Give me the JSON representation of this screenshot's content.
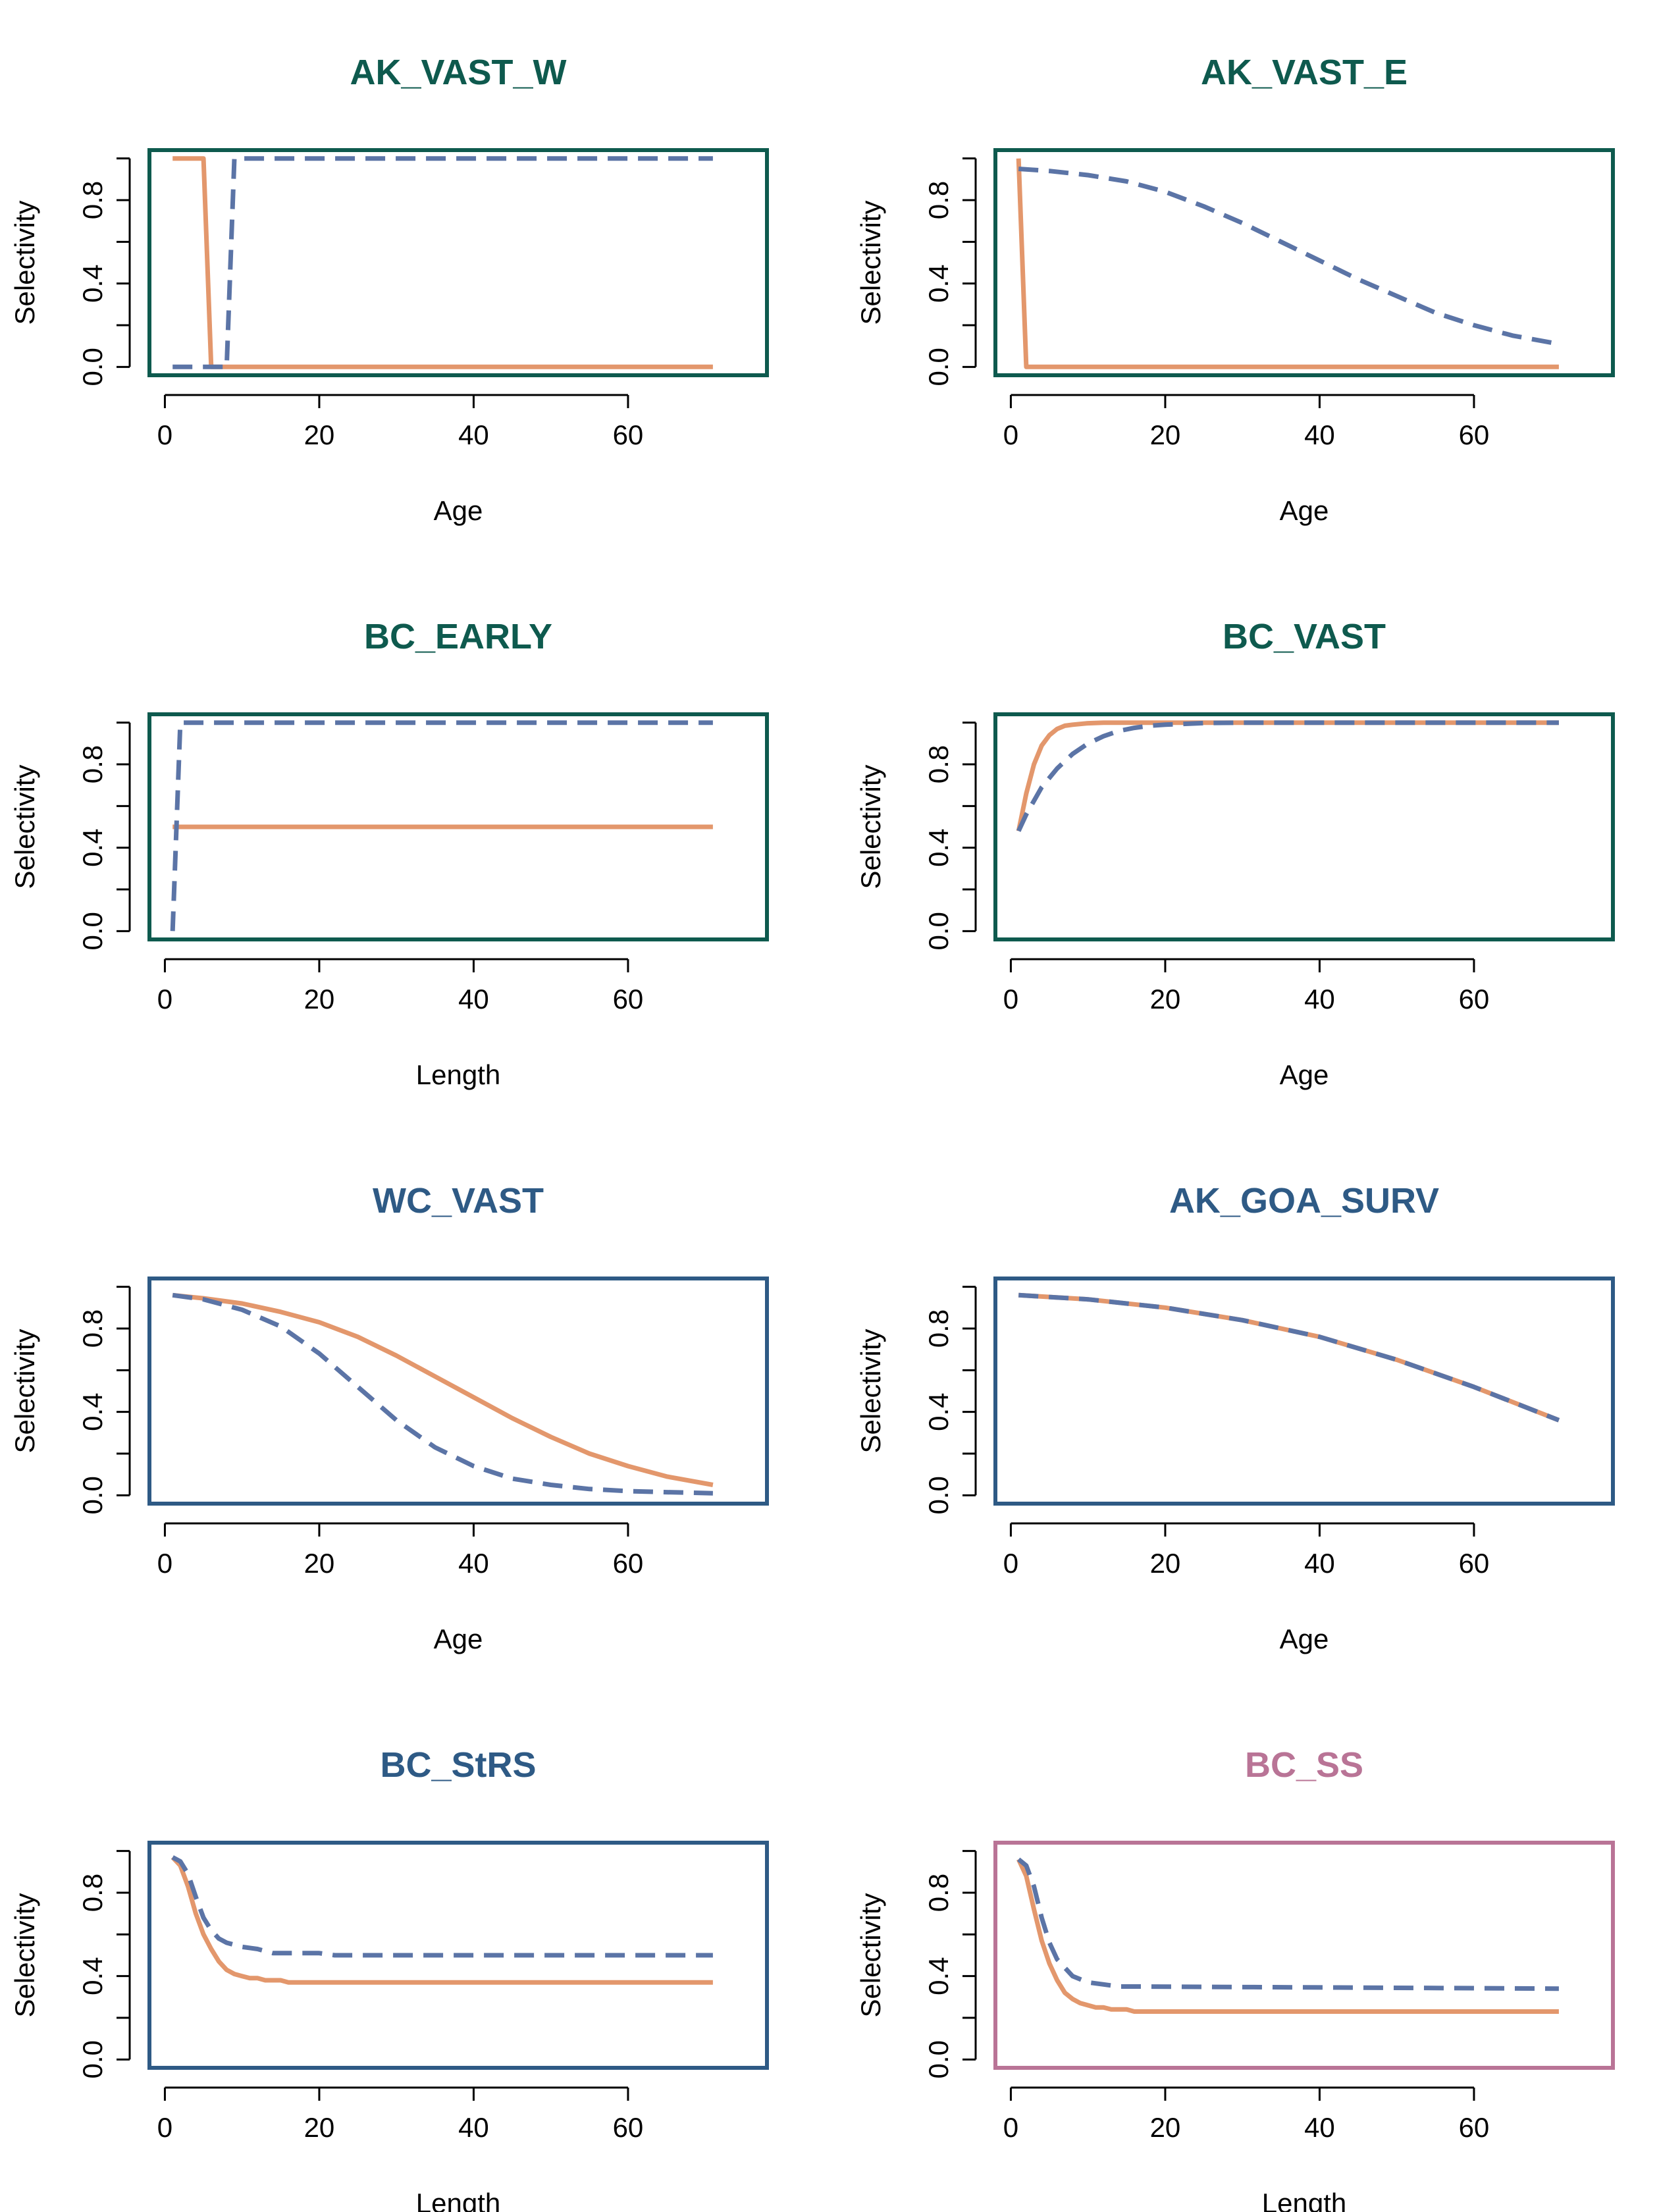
{
  "colors": {
    "orange": "#E3976C",
    "blue_dashed": "#5B74A6",
    "frame_green": "#0E5A4E",
    "frame_blue": "#2E5A85",
    "frame_pink": "#B97496"
  },
  "chart_data": [
    {
      "type": "line",
      "title": "AK_VAST_W",
      "xlabel": "Age",
      "ylabel": "Selectivity",
      "frame_color": "frame_green",
      "xlim": [
        -2,
        78
      ],
      "ylim": [
        -0.04,
        1.04
      ],
      "xticks": [
        "0",
        "20",
        "40",
        "60"
      ],
      "yticks": [
        "0.0",
        "0.4",
        "0.8"
      ],
      "series": [
        {
          "style": "solid",
          "color": "orange",
          "x": [
            1,
            5,
            6,
            71
          ],
          "y": [
            1.0,
            1.0,
            0.0,
            0.0
          ]
        },
        {
          "style": "dashed",
          "color": "blue_dashed",
          "x": [
            1,
            8,
            9,
            71
          ],
          "y": [
            0.0,
            0.0,
            1.0,
            1.0
          ]
        }
      ]
    },
    {
      "type": "line",
      "title": "AK_VAST_E",
      "xlabel": "Age",
      "ylabel": "Selectivity",
      "frame_color": "frame_green",
      "xlim": [
        -2,
        78
      ],
      "ylim": [
        -0.04,
        1.04
      ],
      "xticks": [
        "0",
        "20",
        "40",
        "60"
      ],
      "yticks": [
        "0.0",
        "0.4",
        "0.8"
      ],
      "series": [
        {
          "style": "solid",
          "color": "orange",
          "x": [
            1,
            2,
            71
          ],
          "y": [
            1.0,
            0.0,
            0.0
          ]
        },
        {
          "style": "dashed",
          "color": "blue_dashed",
          "x": [
            1,
            5,
            10,
            15,
            20,
            25,
            30,
            35,
            40,
            45,
            50,
            55,
            60,
            65,
            71
          ],
          "y": [
            0.95,
            0.94,
            0.92,
            0.89,
            0.84,
            0.77,
            0.69,
            0.6,
            0.51,
            0.42,
            0.34,
            0.26,
            0.2,
            0.15,
            0.11
          ]
        }
      ]
    },
    {
      "type": "line",
      "title": "BC_EARLY",
      "xlabel": "Length",
      "ylabel": "Selectivity",
      "frame_color": "frame_green",
      "xlim": [
        -2,
        78
      ],
      "ylim": [
        -0.04,
        1.04
      ],
      "xticks": [
        "0",
        "20",
        "40",
        "60"
      ],
      "yticks": [
        "0.0",
        "0.4",
        "0.8"
      ],
      "series": [
        {
          "style": "solid",
          "color": "orange",
          "x": [
            1,
            2,
            71
          ],
          "y": [
            0.5,
            0.5,
            0.5
          ]
        },
        {
          "style": "dashed",
          "color": "blue_dashed",
          "x": [
            1,
            2,
            71
          ],
          "y": [
            0.0,
            1.0,
            1.0
          ]
        }
      ]
    },
    {
      "type": "line",
      "title": "BC_VAST",
      "xlabel": "Age",
      "ylabel": "Selectivity",
      "frame_color": "frame_green",
      "xlim": [
        -2,
        78
      ],
      "ylim": [
        -0.04,
        1.04
      ],
      "xticks": [
        "0",
        "20",
        "40",
        "60"
      ],
      "yticks": [
        "0.0",
        "0.4",
        "0.8"
      ],
      "series": [
        {
          "style": "solid",
          "color": "orange",
          "x": [
            1,
            2,
            3,
            4,
            5,
            6,
            7,
            8,
            10,
            12,
            15,
            20,
            71
          ],
          "y": [
            0.48,
            0.66,
            0.8,
            0.89,
            0.94,
            0.97,
            0.985,
            0.99,
            0.997,
            1.0,
            1.0,
            1.0,
            1.0
          ]
        },
        {
          "style": "dashed",
          "color": "blue_dashed",
          "x": [
            1,
            2,
            4,
            6,
            8,
            10,
            12,
            14,
            16,
            18,
            20,
            25,
            30,
            71
          ],
          "y": [
            0.48,
            0.56,
            0.69,
            0.78,
            0.85,
            0.9,
            0.935,
            0.96,
            0.975,
            0.985,
            0.99,
            0.998,
            1.0,
            1.0
          ]
        }
      ]
    },
    {
      "type": "line",
      "title": "WC_VAST",
      "xlabel": "Age",
      "ylabel": "Selectivity",
      "frame_color": "frame_blue",
      "xlim": [
        -2,
        78
      ],
      "ylim": [
        -0.04,
        1.04
      ],
      "xticks": [
        "0",
        "20",
        "40",
        "60"
      ],
      "yticks": [
        "0.0",
        "0.4",
        "0.8"
      ],
      "series": [
        {
          "style": "solid",
          "color": "orange",
          "x": [
            1,
            5,
            10,
            15,
            20,
            25,
            30,
            35,
            40,
            45,
            50,
            55,
            60,
            65,
            71
          ],
          "y": [
            0.96,
            0.945,
            0.92,
            0.88,
            0.83,
            0.76,
            0.67,
            0.57,
            0.47,
            0.37,
            0.28,
            0.2,
            0.14,
            0.09,
            0.05
          ]
        },
        {
          "style": "dashed",
          "color": "blue_dashed",
          "x": [
            1,
            5,
            10,
            15,
            20,
            25,
            30,
            35,
            40,
            45,
            50,
            55,
            60,
            65,
            71
          ],
          "y": [
            0.96,
            0.94,
            0.89,
            0.81,
            0.68,
            0.52,
            0.36,
            0.23,
            0.14,
            0.08,
            0.05,
            0.03,
            0.02,
            0.015,
            0.01
          ]
        }
      ]
    },
    {
      "type": "line",
      "title": "AK_GOA_SURV",
      "xlabel": "Age",
      "ylabel": "Selectivity",
      "frame_color": "frame_blue",
      "xlim": [
        -2,
        78
      ],
      "ylim": [
        -0.04,
        1.04
      ],
      "xticks": [
        "0",
        "20",
        "40",
        "60"
      ],
      "yticks": [
        "0.0",
        "0.4",
        "0.8"
      ],
      "series": [
        {
          "style": "solid",
          "color": "orange",
          "x": [
            1,
            10,
            20,
            30,
            40,
            50,
            60,
            71
          ],
          "y": [
            0.96,
            0.94,
            0.9,
            0.84,
            0.76,
            0.65,
            0.52,
            0.36
          ]
        },
        {
          "style": "dashed",
          "color": "blue_dashed",
          "x": [
            1,
            10,
            20,
            30,
            40,
            50,
            60,
            71
          ],
          "y": [
            0.96,
            0.94,
            0.9,
            0.84,
            0.76,
            0.65,
            0.52,
            0.36
          ]
        }
      ]
    },
    {
      "type": "line",
      "title": "BC_StRS",
      "xlabel": "Length",
      "ylabel": "Selectivity",
      "frame_color": "frame_blue",
      "xlim": [
        -2,
        78
      ],
      "ylim": [
        -0.04,
        1.04
      ],
      "xticks": [
        "0",
        "20",
        "40",
        "60"
      ],
      "yticks": [
        "0.0",
        "0.4",
        "0.8"
      ],
      "series": [
        {
          "style": "solid",
          "color": "orange",
          "x": [
            1,
            2,
            3,
            4,
            5,
            6,
            7,
            8,
            9,
            10,
            11,
            12,
            13,
            14,
            15,
            16,
            71
          ],
          "y": [
            0.97,
            0.93,
            0.83,
            0.7,
            0.6,
            0.53,
            0.47,
            0.43,
            0.41,
            0.4,
            0.39,
            0.39,
            0.38,
            0.38,
            0.38,
            0.37,
            0.37
          ]
        },
        {
          "style": "dashed",
          "color": "blue_dashed",
          "x": [
            1,
            2,
            3,
            4,
            5,
            6,
            7,
            8,
            10,
            12,
            14,
            16,
            18,
            20,
            22,
            71
          ],
          "y": [
            0.97,
            0.95,
            0.89,
            0.78,
            0.68,
            0.62,
            0.58,
            0.56,
            0.54,
            0.53,
            0.51,
            0.51,
            0.51,
            0.51,
            0.5,
            0.5
          ]
        }
      ]
    },
    {
      "type": "line",
      "title": "BC_SS",
      "xlabel": "Length",
      "ylabel": "Selectivity",
      "frame_color": "frame_pink",
      "xlim": [
        -2,
        78
      ],
      "ylim": [
        -0.04,
        1.04
      ],
      "xticks": [
        "0",
        "20",
        "40",
        "60"
      ],
      "yticks": [
        "0.0",
        "0.4",
        "0.8"
      ],
      "series": [
        {
          "style": "solid",
          "color": "orange",
          "x": [
            1,
            2,
            3,
            4,
            5,
            6,
            7,
            8,
            9,
            10,
            11,
            12,
            13,
            14,
            15,
            16,
            71
          ],
          "y": [
            0.96,
            0.88,
            0.72,
            0.57,
            0.46,
            0.38,
            0.32,
            0.29,
            0.27,
            0.26,
            0.25,
            0.25,
            0.24,
            0.24,
            0.24,
            0.23,
            0.23
          ]
        },
        {
          "style": "dashed",
          "color": "blue_dashed",
          "x": [
            1,
            2,
            3,
            4,
            5,
            6,
            7,
            8,
            10,
            12,
            14,
            16,
            71
          ],
          "y": [
            0.96,
            0.93,
            0.83,
            0.68,
            0.56,
            0.48,
            0.44,
            0.4,
            0.37,
            0.36,
            0.35,
            0.35,
            0.34
          ]
        }
      ]
    }
  ]
}
